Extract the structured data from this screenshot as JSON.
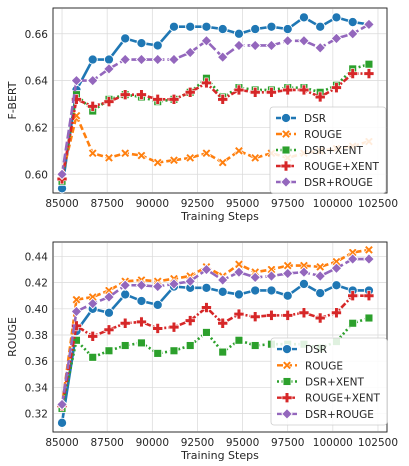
{
  "chart_data": [
    {
      "type": "line",
      "title": "",
      "xlabel": "Training Steps",
      "ylabel": "F-BERT",
      "xlim": [
        84500,
        103000
      ],
      "ylim": [
        0.592,
        0.671
      ],
      "xticks": [
        "85000",
        "87500",
        "90000",
        "92500",
        "95000",
        "97500",
        "100000",
        "102500"
      ],
      "yticks": [
        "0.60",
        "0.62",
        "0.64",
        "0.66"
      ],
      "grid": true,
      "legend_position": "lower-right",
      "x": [
        85000,
        85800,
        86700,
        87600,
        88500,
        89400,
        90300,
        91200,
        92100,
        93000,
        93900,
        94800,
        95700,
        96600,
        97500,
        98400,
        99300,
        100200,
        101100,
        102000
      ],
      "series": [
        {
          "name": "DSR",
          "color": "#1f77b4",
          "marker": "circle",
          "dash": "solid",
          "values": [
            0.594,
            0.636,
            0.649,
            0.649,
            0.658,
            0.656,
            0.655,
            0.663,
            0.663,
            0.663,
            0.662,
            0.66,
            0.662,
            0.663,
            0.662,
            0.667,
            0.663,
            0.667,
            0.665,
            0.664
          ]
        },
        {
          "name": "ROUGE",
          "color": "#ff7f0e",
          "marker": "x",
          "dash": "dashed",
          "values": [
            0.599,
            0.625,
            0.609,
            0.607,
            0.609,
            0.608,
            0.605,
            0.606,
            0.607,
            0.609,
            0.605,
            0.61,
            0.607,
            0.609,
            0.607,
            0.609,
            0.61,
            0.611,
            0.612,
            0.614
          ]
        },
        {
          "name": "DSR+XENT",
          "color": "#2ca02c",
          "marker": "square",
          "dash": "dotted",
          "values": [
            0.597,
            0.634,
            0.627,
            0.632,
            0.634,
            0.633,
            0.631,
            0.632,
            0.635,
            0.641,
            0.633,
            0.637,
            0.636,
            0.636,
            0.637,
            0.637,
            0.635,
            0.638,
            0.645,
            0.647
          ]
        },
        {
          "name": "ROUGE+XENT",
          "color": "#d62728",
          "marker": "plus",
          "dash": "dashdot",
          "values": [
            0.598,
            0.632,
            0.629,
            0.631,
            0.634,
            0.634,
            0.632,
            0.632,
            0.635,
            0.639,
            0.632,
            0.636,
            0.635,
            0.635,
            0.636,
            0.636,
            0.633,
            0.637,
            0.643,
            0.643
          ]
        },
        {
          "name": "DSR+ROUGE",
          "color": "#9467bd",
          "marker": "diamond",
          "dash": "longdash",
          "values": [
            0.6,
            0.64,
            0.64,
            0.645,
            0.649,
            0.649,
            0.649,
            0.649,
            0.652,
            0.657,
            0.65,
            0.655,
            0.655,
            0.655,
            0.657,
            0.657,
            0.654,
            0.658,
            0.66,
            0.664
          ]
        }
      ]
    },
    {
      "type": "line",
      "title": "",
      "xlabel": "Training Steps",
      "ylabel": "ROUGE",
      "xlim": [
        84500,
        103000
      ],
      "ylim": [
        0.306,
        0.451
      ],
      "xticks": [
        "85000",
        "87500",
        "90000",
        "92500",
        "95000",
        "97500",
        "100000",
        "102500"
      ],
      "yticks": [
        "0.32",
        "0.34",
        "0.36",
        "0.38",
        "0.40",
        "0.42",
        "0.44"
      ],
      "grid": true,
      "legend_position": "lower-right",
      "x": [
        85000,
        85800,
        86700,
        87600,
        88500,
        89400,
        90300,
        91200,
        92100,
        93000,
        93900,
        94800,
        95700,
        96600,
        97500,
        98400,
        99300,
        100200,
        101100,
        102000
      ],
      "series": [
        {
          "name": "DSR",
          "color": "#1f77b4",
          "marker": "circle",
          "dash": "solid",
          "values": [
            0.313,
            0.383,
            0.4,
            0.397,
            0.411,
            0.406,
            0.403,
            0.417,
            0.416,
            0.416,
            0.413,
            0.411,
            0.414,
            0.414,
            0.41,
            0.419,
            0.412,
            0.418,
            0.414,
            0.414
          ]
        },
        {
          "name": "ROUGE",
          "color": "#ff7f0e",
          "marker": "x",
          "dash": "dashed",
          "values": [
            0.326,
            0.407,
            0.409,
            0.414,
            0.421,
            0.422,
            0.421,
            0.423,
            0.425,
            0.432,
            0.425,
            0.434,
            0.428,
            0.43,
            0.433,
            0.433,
            0.432,
            0.436,
            0.443,
            0.445
          ]
        },
        {
          "name": "DSR+XENT",
          "color": "#2ca02c",
          "marker": "square",
          "dash": "dotted",
          "values": [
            0.324,
            0.376,
            0.363,
            0.368,
            0.372,
            0.374,
            0.366,
            0.368,
            0.372,
            0.382,
            0.367,
            0.376,
            0.372,
            0.373,
            0.373,
            0.373,
            0.37,
            0.375,
            0.389,
            0.393
          ]
        },
        {
          "name": "ROUGE+XENT",
          "color": "#d62728",
          "marker": "plus",
          "dash": "dashdot",
          "values": [
            0.326,
            0.387,
            0.379,
            0.384,
            0.389,
            0.39,
            0.385,
            0.386,
            0.391,
            0.401,
            0.389,
            0.396,
            0.394,
            0.395,
            0.395,
            0.397,
            0.393,
            0.397,
            0.41,
            0.41
          ]
        },
        {
          "name": "DSR+ROUGE",
          "color": "#9467bd",
          "marker": "diamond",
          "dash": "longdash",
          "values": [
            0.327,
            0.398,
            0.404,
            0.409,
            0.418,
            0.418,
            0.417,
            0.419,
            0.421,
            0.43,
            0.422,
            0.428,
            0.424,
            0.425,
            0.427,
            0.428,
            0.425,
            0.431,
            0.438,
            0.438
          ]
        }
      ]
    }
  ]
}
